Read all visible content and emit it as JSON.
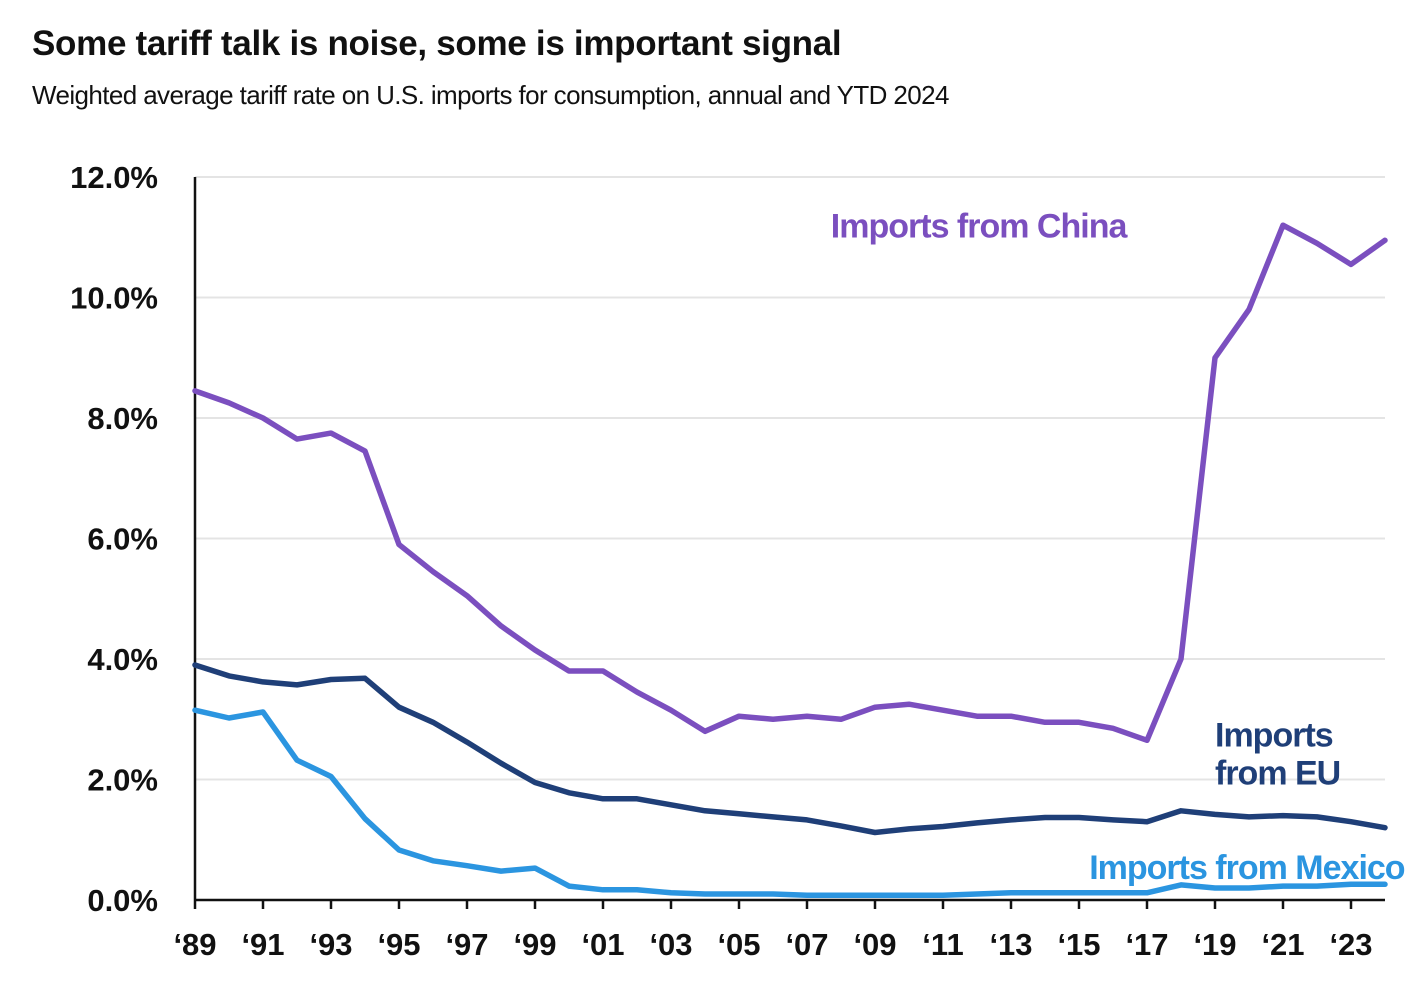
{
  "title": "Some tariff talk is noise, some is important signal",
  "subtitle": "Weighted average tariff rate on U.S. imports for consumption, annual and YTD 2024",
  "chart_data": {
    "type": "line",
    "title": "Some tariff talk is noise, some is important signal",
    "subtitle": "Weighted average tariff rate on U.S. imports for consumption, annual and YTD 2024",
    "xlabel": "",
    "ylabel": "",
    "xlim": [
      1989,
      2024
    ],
    "ylim": [
      0,
      12
    ],
    "grid": true,
    "legend": "none (direct labels)",
    "y_ticks": [
      {
        "value": 0,
        "label": "0.0%"
      },
      {
        "value": 2,
        "label": "2.0%"
      },
      {
        "value": 4,
        "label": "4.0%"
      },
      {
        "value": 6,
        "label": "6.0%"
      },
      {
        "value": 8,
        "label": "8.0%"
      },
      {
        "value": 10,
        "label": "10.0%"
      },
      {
        "value": 12,
        "label": "12.0%"
      }
    ],
    "x_ticks": [
      {
        "value": 1989,
        "label": "‘89"
      },
      {
        "value": 1991,
        "label": "‘91"
      },
      {
        "value": 1993,
        "label": "‘93"
      },
      {
        "value": 1995,
        "label": "‘95"
      },
      {
        "value": 1997,
        "label": "‘97"
      },
      {
        "value": 1999,
        "label": "‘99"
      },
      {
        "value": 2001,
        "label": "‘01"
      },
      {
        "value": 2003,
        "label": "‘03"
      },
      {
        "value": 2005,
        "label": "‘05"
      },
      {
        "value": 2007,
        "label": "‘07"
      },
      {
        "value": 2009,
        "label": "‘09"
      },
      {
        "value": 2011,
        "label": "‘11"
      },
      {
        "value": 2013,
        "label": "‘13"
      },
      {
        "value": 2015,
        "label": "‘15"
      },
      {
        "value": 2017,
        "label": "‘17"
      },
      {
        "value": 2019,
        "label": "‘19"
      },
      {
        "value": 2021,
        "label": "‘21"
      },
      {
        "value": 2023,
        "label": "‘23"
      }
    ],
    "x": [
      1989,
      1990,
      1991,
      1992,
      1993,
      1994,
      1995,
      1996,
      1997,
      1998,
      1999,
      2000,
      2001,
      2002,
      2003,
      2004,
      2005,
      2006,
      2007,
      2008,
      2009,
      2010,
      2011,
      2012,
      2013,
      2014,
      2015,
      2016,
      2017,
      2018,
      2019,
      2020,
      2021,
      2022,
      2023,
      2024
    ],
    "series": [
      {
        "name": "Imports from China",
        "color": "#7b4fbf",
        "label_lines": [
          "Imports from China"
        ],
        "label_anchor": {
          "x": 2007.7,
          "y": 11.0
        },
        "values": [
          8.45,
          8.25,
          8.0,
          7.65,
          7.75,
          7.45,
          5.9,
          5.45,
          5.05,
          4.55,
          4.15,
          3.8,
          3.8,
          3.45,
          3.15,
          2.8,
          3.05,
          3.0,
          3.05,
          3.0,
          3.2,
          3.25,
          3.15,
          3.05,
          3.05,
          2.95,
          2.95,
          2.85,
          2.65,
          4.0,
          9.0,
          9.8,
          11.2,
          10.9,
          10.55,
          10.95
        ]
      },
      {
        "name": "Imports from EU",
        "color": "#1f3f78",
        "label_lines": [
          "Imports",
          "from EU"
        ],
        "label_anchor": {
          "x": 2019.0,
          "y": 2.55
        },
        "values": [
          3.9,
          3.72,
          3.62,
          3.57,
          3.66,
          3.68,
          3.2,
          2.95,
          2.62,
          2.27,
          1.95,
          1.78,
          1.68,
          1.68,
          1.58,
          1.48,
          1.43,
          1.38,
          1.33,
          1.23,
          1.12,
          1.18,
          1.22,
          1.28,
          1.33,
          1.37,
          1.37,
          1.33,
          1.3,
          1.48,
          1.42,
          1.38,
          1.4,
          1.38,
          1.3,
          1.2
        ]
      },
      {
        "name": "Imports from Mexico",
        "color": "#2b95e0",
        "label_lines": [
          "Imports from Mexico"
        ],
        "label_anchor": {
          "x": 2015.3,
          "y": 0.35
        },
        "values": [
          3.15,
          3.02,
          3.12,
          2.32,
          2.05,
          1.35,
          0.83,
          0.65,
          0.57,
          0.48,
          0.53,
          0.23,
          0.17,
          0.17,
          0.12,
          0.1,
          0.1,
          0.1,
          0.08,
          0.08,
          0.08,
          0.08,
          0.08,
          0.1,
          0.12,
          0.12,
          0.12,
          0.12,
          0.12,
          0.25,
          0.2,
          0.2,
          0.23,
          0.23,
          0.26,
          0.26
        ]
      }
    ]
  }
}
